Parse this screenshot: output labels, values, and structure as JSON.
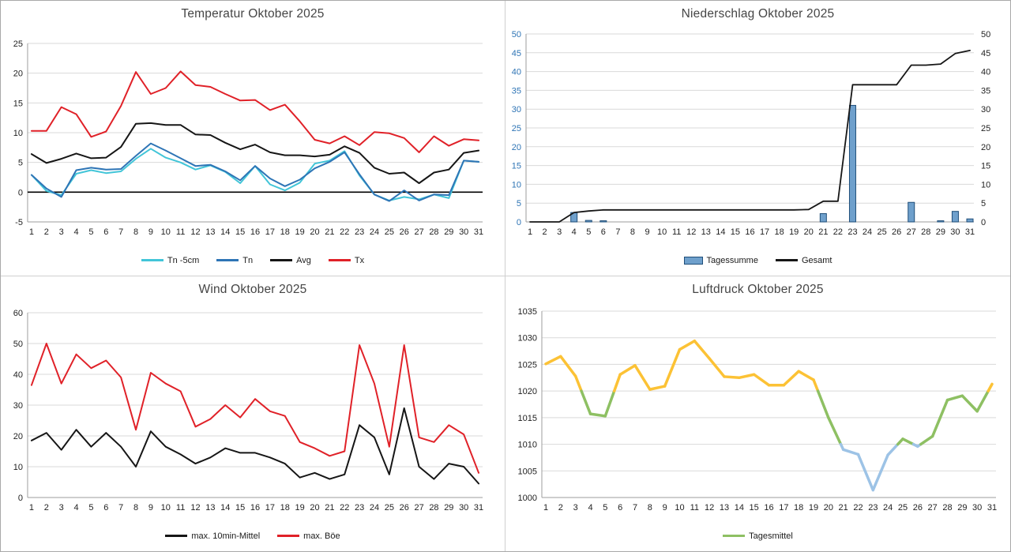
{
  "chart_data": [
    {
      "key": "temperature",
      "type": "line",
      "title": "Temperatur Oktober 2025",
      "x": [
        1,
        2,
        3,
        4,
        5,
        6,
        7,
        8,
        9,
        10,
        11,
        12,
        13,
        14,
        15,
        16,
        17,
        18,
        19,
        20,
        21,
        22,
        23,
        24,
        25,
        26,
        27,
        28,
        29,
        30,
        31
      ],
      "ylim": [
        -5,
        25
      ],
      "ystep": 5,
      "zero_line": true,
      "grid": true,
      "legend_position": "bottom",
      "series": [
        {
          "name": "Tn -5cm",
          "color": "#42C5D8",
          "width": 2,
          "values": [
            2.9,
            0.2,
            -0.5,
            3.1,
            3.7,
            3.2,
            3.5,
            5.6,
            7.3,
            5.8,
            5.0,
            3.8,
            4.5,
            3.4,
            1.5,
            4.4,
            1.3,
            0.3,
            1.6,
            4.8,
            5.3,
            6.9,
            2.8,
            -0.4,
            -1.4,
            -0.8,
            -1.2,
            -0.4,
            -1.0,
            5.3,
            5.1
          ]
        },
        {
          "name": "Tn",
          "color": "#2E75B6",
          "width": 2,
          "values": [
            2.9,
            0.6,
            -0.8,
            3.7,
            4.1,
            3.8,
            3.9,
            6.1,
            8.2,
            7.0,
            5.7,
            4.4,
            4.6,
            3.5,
            2.0,
            4.4,
            2.3,
            1.0,
            2.1,
            4.0,
            5.1,
            6.7,
            3.0,
            -0.4,
            -1.5,
            0.3,
            -1.4,
            -0.4,
            -0.5,
            5.3,
            5.1
          ]
        },
        {
          "name": "Avg",
          "color": "#161616",
          "width": 2,
          "values": [
            6.4,
            4.9,
            5.6,
            6.5,
            5.7,
            5.8,
            7.6,
            11.5,
            11.6,
            11.3,
            11.3,
            9.7,
            9.6,
            8.3,
            7.2,
            8.0,
            6.7,
            6.2,
            6.2,
            6.0,
            6.3,
            7.7,
            6.6,
            4.1,
            3.1,
            3.3,
            1.5,
            3.3,
            3.8,
            6.6,
            7.0
          ]
        },
        {
          "name": "Tx",
          "color": "#E02128",
          "width": 2,
          "values": [
            10.3,
            10.3,
            14.3,
            13.1,
            9.3,
            10.2,
            14.5,
            20.2,
            16.5,
            17.5,
            20.3,
            18.0,
            17.7,
            16.5,
            15.4,
            15.5,
            13.8,
            14.7,
            11.9,
            8.8,
            8.2,
            9.4,
            7.9,
            10.1,
            9.9,
            9.1,
            6.7,
            9.4,
            7.8,
            8.9,
            8.7
          ]
        }
      ]
    },
    {
      "key": "precipitation",
      "type": "bar-line",
      "title": "Niederschlag Oktober 2025",
      "x": [
        1,
        2,
        3,
        4,
        5,
        6,
        7,
        8,
        9,
        10,
        11,
        12,
        13,
        14,
        15,
        16,
        17,
        18,
        19,
        20,
        21,
        22,
        23,
        24,
        25,
        26,
        27,
        28,
        29,
        30,
        31
      ],
      "ylim": [
        0,
        50
      ],
      "ystep": 5,
      "dual_axis": true,
      "left_label_color": "#2E74B5",
      "grid": true,
      "bar_series": {
        "name": "Tagessumme",
        "fill": "#6FA0CC",
        "border": "#1F4E79",
        "values": [
          0,
          0,
          0,
          2.5,
          0.4,
          0.3,
          0,
          0,
          0,
          0,
          0,
          0,
          0,
          0,
          0,
          0,
          0,
          0,
          0,
          0,
          2.2,
          0,
          31.0,
          0,
          0,
          0,
          5.2,
          0,
          0.3,
          2.8,
          0.8
        ]
      },
      "line_series": {
        "name": "Gesamt",
        "color": "#161616",
        "width": 1.8,
        "values": [
          0,
          0,
          0,
          2.5,
          2.9,
          3.2,
          3.2,
          3.2,
          3.2,
          3.2,
          3.2,
          3.2,
          3.2,
          3.2,
          3.2,
          3.2,
          3.2,
          3.2,
          3.2,
          3.3,
          5.5,
          5.5,
          36.5,
          36.5,
          36.5,
          36.5,
          41.7,
          41.7,
          42.0,
          44.8,
          45.6
        ]
      }
    },
    {
      "key": "wind",
      "type": "line",
      "title": "Wind Oktober 2025",
      "x": [
        1,
        2,
        3,
        4,
        5,
        6,
        7,
        8,
        9,
        10,
        11,
        12,
        13,
        14,
        15,
        16,
        17,
        18,
        19,
        20,
        21,
        22,
        23,
        24,
        25,
        26,
        27,
        28,
        29,
        30,
        31
      ],
      "ylim": [
        0,
        60
      ],
      "ystep": 10,
      "grid": true,
      "series": [
        {
          "name": "max. 10min-Mittel",
          "color": "#161616",
          "width": 2,
          "values": [
            18.5,
            21.0,
            15.5,
            22.0,
            16.5,
            21.0,
            16.5,
            10.0,
            21.5,
            16.5,
            14.0,
            11.0,
            13.0,
            16.0,
            14.5,
            14.5,
            13.0,
            11.0,
            6.5,
            8.0,
            6.0,
            7.5,
            23.5,
            19.5,
            7.5,
            29.0,
            10.0,
            6.0,
            11.0,
            10.0,
            4.5
          ]
        },
        {
          "name": "max. Böe",
          "color": "#E02128",
          "width": 2,
          "values": [
            36.5,
            50.0,
            37.0,
            46.5,
            42.0,
            44.5,
            39.0,
            22.0,
            40.5,
            37.0,
            34.5,
            23.0,
            25.5,
            30.0,
            26.0,
            32.0,
            28.0,
            26.5,
            18.0,
            16.0,
            13.5,
            15.0,
            49.5,
            37.0,
            16.5,
            49.5,
            19.5,
            18.0,
            23.5,
            20.5,
            8.0
          ]
        }
      ]
    },
    {
      "key": "pressure",
      "type": "threshold-line",
      "title": "Luftdruck Oktober 2025",
      "x": [
        1,
        2,
        3,
        4,
        5,
        6,
        7,
        8,
        9,
        10,
        11,
        12,
        13,
        14,
        15,
        16,
        17,
        18,
        19,
        20,
        21,
        22,
        23,
        24,
        25,
        26,
        27,
        28,
        29,
        30,
        31
      ],
      "ylim": [
        1000,
        1035
      ],
      "ystep": 5,
      "grid": true,
      "series_name": "Tagesmittel",
      "line_width": 3.5,
      "thresholds": [
        1010,
        1020
      ],
      "colors": {
        "low": "#9DC3E6",
        "mid": "#8EC063",
        "high": "#FCC235"
      },
      "legend_color": "#8EC063",
      "values": [
        1025.1,
        1026.5,
        1022.8,
        1015.7,
        1015.3,
        1023.1,
        1024.8,
        1020.3,
        1020.9,
        1027.8,
        1029.4,
        1026.1,
        1022.7,
        1022.5,
        1023.1,
        1021.1,
        1021.1,
        1023.7,
        1022.1,
        1015.0,
        1009.0,
        1008.1,
        1001.4,
        1008.0,
        1011.0,
        1009.6,
        1011.5,
        1018.3,
        1019.1,
        1016.2,
        1021.3
      ]
    }
  ]
}
